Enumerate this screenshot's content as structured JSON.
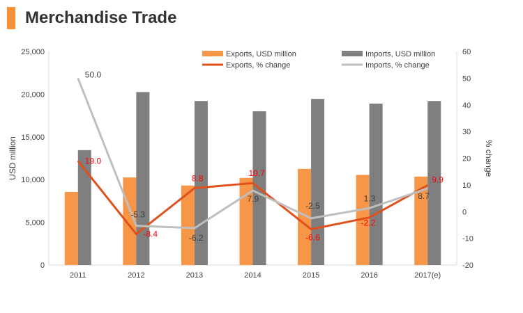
{
  "header": {
    "title": "Merchandise Trade"
  },
  "chart_data": {
    "type": "bar",
    "categories": [
      "2011",
      "2012",
      "2013",
      "2014",
      "2015",
      "2016",
      "2017(e)"
    ],
    "series": [
      {
        "name": "Exports, USD million",
        "kind": "bar",
        "axis": "left",
        "color": "#f79646",
        "values": [
          8550,
          10250,
          9300,
          10200,
          11250,
          10550,
          10350
        ]
      },
      {
        "name": "Imports, USD million",
        "kind": "bar",
        "axis": "left",
        "color": "#7f7f7f",
        "values": [
          13450,
          20250,
          19200,
          18000,
          19450,
          18900,
          19200
        ]
      },
      {
        "name": "Exports, % change",
        "kind": "line",
        "axis": "right",
        "color": "#e0501b",
        "values": [
          19.0,
          -8.4,
          8.8,
          10.7,
          -6.6,
          -2.2,
          9.9
        ],
        "labels": [
          "19.0",
          "-8.4",
          "8.8",
          "10.7",
          "-6.6",
          "-2.2",
          "9.9"
        ],
        "label_color": "#ff0000"
      },
      {
        "name": "Imports, % change",
        "kind": "line",
        "axis": "right",
        "color": "#bfbfbf",
        "values": [
          50.0,
          -5.3,
          -6.2,
          7.9,
          -2.5,
          1.3,
          8.7
        ],
        "labels": [
          "50.0",
          "-5.3",
          "-6.2",
          "7.9",
          "-2.5",
          "1.3",
          "8.7"
        ],
        "label_color": "#404040"
      }
    ],
    "ylabel": "USD million",
    "y2label": "% change",
    "ylim": [
      0,
      25000
    ],
    "y2lim": [
      -20,
      60
    ],
    "yticks": [
      "0",
      "5,000",
      "10,000",
      "15,000",
      "20,000",
      "25,000"
    ],
    "y2ticks": [
      "-20",
      "-10",
      "0",
      "10",
      "20",
      "30",
      "40",
      "50",
      "60"
    ],
    "legend": "top-right",
    "grid": false
  }
}
